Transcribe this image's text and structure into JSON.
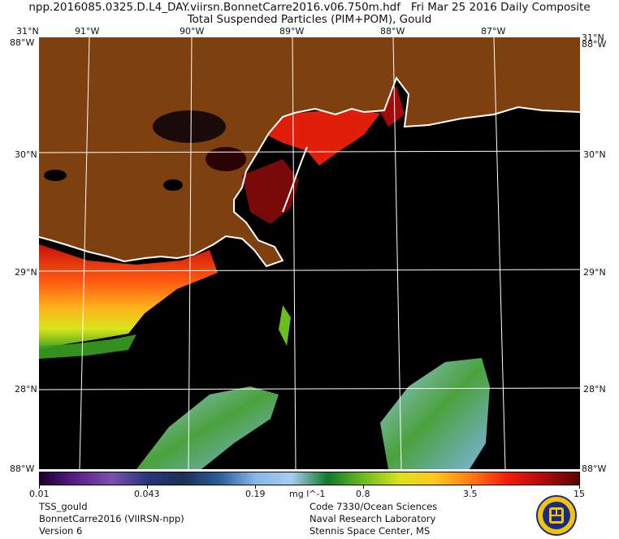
{
  "header": {
    "filename": "npp.2016085.0325.D.L4_DAY.viirsn.BonnetCarre2016.v06.750m.hdf",
    "date_label": "Fri Mar 25 2016 Daily Composite",
    "product_title": "Total Suspended Particles (PIM+POM), Gould"
  },
  "map": {
    "lon_labels": [
      "91°W",
      "90°W",
      "89°W",
      "88°W",
      "87°W"
    ],
    "lat_labels": [
      "30°N",
      "29°N",
      "28°N"
    ],
    "corner_top_left": "31°N",
    "corner_top_right": "31°N",
    "corner_overlap_top": "88°W",
    "corner_bottom": "88°W",
    "corner_bottom_right": "88°W",
    "colors": {
      "land": "#7f4010",
      "ocean_no_data": "#000000",
      "coast": "#ffffff",
      "grid": "#ffffff"
    }
  },
  "colorbar": {
    "tick_labels": [
      "0.01",
      "0.043",
      "0.19",
      "0.8",
      "3.5",
      "15"
    ],
    "unit": "mg l^-1",
    "gradient": [
      "#1a0030",
      "#5a1f86",
      "#7b4fb0",
      "#26357a",
      "#1b2f55",
      "#2b5e9c",
      "#86b7e9",
      "#a8cdf0",
      "#0e7a2a",
      "#6cbc1c",
      "#d9e41a",
      "#ffc61e",
      "#ff7a10",
      "#f21c0a",
      "#b20a0a",
      "#5a0404"
    ]
  },
  "footer": {
    "left": [
      "TSS_gould",
      "BonnetCarre2016 (VIIRSN-npp)",
      "Version 6"
    ],
    "right": [
      "Code 7330/Ocean Sciences",
      "Naval Research Laboratory",
      "Stennis Space Center, MS"
    ]
  }
}
